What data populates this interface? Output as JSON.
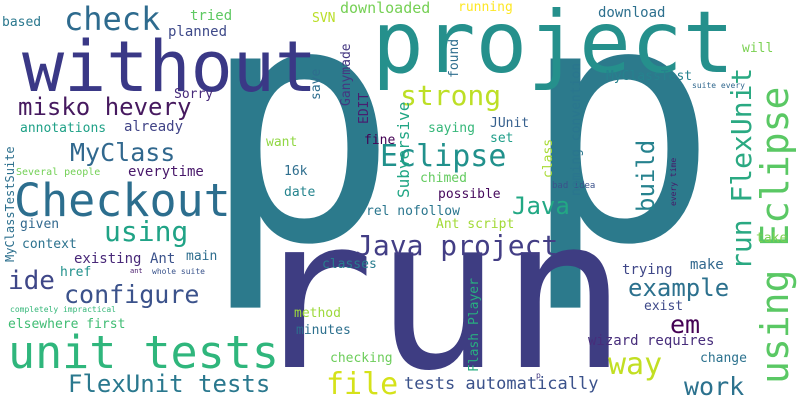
{
  "word_cloud": {
    "words": [
      {
        "text": "p",
        "color": "#2c7a8c"
      },
      {
        "text": "run",
        "color": "#3e3d82"
      },
      {
        "text": "project",
        "color": "#25908c"
      },
      {
        "text": "without",
        "color": "#3a3886"
      },
      {
        "text": "unit tests",
        "color": "#2fb67c"
      },
      {
        "text": "Checkout",
        "color": "#2c6e8e"
      },
      {
        "text": "using Eclipse",
        "color": "#5ac864"
      },
      {
        "text": "Java project",
        "color": "#433e85"
      },
      {
        "text": "run FlexUnit",
        "color": "#2aa982"
      },
      {
        "text": "check",
        "color": "#2e6b8e"
      },
      {
        "text": "misko hevery",
        "color": "#46195f"
      },
      {
        "text": "MyClass",
        "color": "#31688e"
      },
      {
        "text": "Eclipse",
        "color": "#21918c"
      },
      {
        "text": "strong",
        "color": "#bddf26"
      },
      {
        "text": "configure",
        "color": "#3b528b"
      },
      {
        "text": "FlexUnit tests",
        "color": "#2a788e"
      },
      {
        "text": "file",
        "color": "#d5e21a"
      },
      {
        "text": "using",
        "color": "#20a386"
      },
      {
        "text": "ide",
        "color": "#3f4788"
      },
      {
        "text": "example",
        "color": "#2c718e"
      },
      {
        "text": "work",
        "color": "#2c728e"
      },
      {
        "text": "way",
        "color": "#c2df23"
      },
      {
        "text": "em",
        "color": "#440154"
      },
      {
        "text": "build",
        "color": "#26828e"
      },
      {
        "text": "Java",
        "color": "#22a884"
      },
      {
        "text": "tests automatically",
        "color": "#3b528b"
      },
      {
        "text": "downloaded",
        "color": "#75d054"
      },
      {
        "text": "running",
        "color": "#fde725"
      },
      {
        "text": "download",
        "color": "#2d708e"
      },
      {
        "text": "tried",
        "color": "#5ec962"
      },
      {
        "text": "planned",
        "color": "#3e4989"
      },
      {
        "text": "SVN",
        "color": "#bade28"
      },
      {
        "text": "based",
        "color": "#2a788e"
      },
      {
        "text": "will",
        "color": "#7ad151"
      },
      {
        "text": "MyClassTest",
        "color": "#26828e"
      },
      {
        "text": "suite every",
        "color": "#31688e"
      },
      {
        "text": "Sorry",
        "color": "#472a7a"
      },
      {
        "text": "annotations",
        "color": "#1fa187"
      },
      {
        "text": "already",
        "color": "#414487"
      },
      {
        "text": "Several people",
        "color": "#73d056"
      },
      {
        "text": "everytime",
        "color": "#48186a"
      },
      {
        "text": "given",
        "color": "#31688e"
      },
      {
        "text": "context",
        "color": "#2c728e"
      },
      {
        "text": "existing",
        "color": "#482878"
      },
      {
        "text": "Ant",
        "color": "#3b528b"
      },
      {
        "text": "main",
        "color": "#2e6e8e"
      },
      {
        "text": "href",
        "color": "#21918c"
      },
      {
        "text": "ant",
        "color": "#481b6d"
      },
      {
        "text": "whole suite",
        "color": "#3a548c"
      },
      {
        "text": "completely impractical",
        "color": "#35b779"
      },
      {
        "text": "elsewhere first",
        "color": "#3fbc73"
      },
      {
        "text": "MyClassTestSuite",
        "color": "#2d708e"
      },
      {
        "text": "want",
        "color": "#90d743"
      },
      {
        "text": "16k",
        "color": "#2e6e8e"
      },
      {
        "text": "date",
        "color": "#25848e"
      },
      {
        "text": "fine",
        "color": "#440154"
      },
      {
        "text": "saying",
        "color": "#35b779"
      },
      {
        "text": "JUnit",
        "color": "#355f8d"
      },
      {
        "text": "set",
        "color": "#1f9e89"
      },
      {
        "text": "chimed",
        "color": "#63cb5f"
      },
      {
        "text": "possible",
        "color": "#460a5d"
      },
      {
        "text": "rel nofollow",
        "color": "#2a768e"
      },
      {
        "text": "Ant script",
        "color": "#a2da37"
      },
      {
        "text": "bad idea",
        "color": "#3b528b"
      },
      {
        "text": "every time",
        "color": "#481769"
      },
      {
        "text": "take",
        "color": "#7ad151"
      },
      {
        "text": "trying",
        "color": "#3f4788"
      },
      {
        "text": "make",
        "color": "#31688e"
      },
      {
        "text": "classes",
        "color": "#287c8e"
      },
      {
        "text": "method",
        "color": "#9dd93b"
      },
      {
        "text": "minutes",
        "color": "#2d708e"
      },
      {
        "text": "exist",
        "color": "#3e4989"
      },
      {
        "text": "wizard requires",
        "color": "#472d7b"
      },
      {
        "text": "change",
        "color": "#2c728e"
      },
      {
        "text": "checking",
        "color": "#6ccd5a"
      },
      {
        "text": "Flash Player",
        "color": "#28ae80"
      },
      {
        "text": "Subversive",
        "color": "#21a685"
      },
      {
        "text": "class",
        "color": "#a8db34"
      },
      {
        "text": "naming convention",
        "color": "#2a768e"
      },
      {
        "text": "found",
        "color": "#2e6e8e"
      },
      {
        "text": "EDIT",
        "color": "#481f70"
      },
      {
        "text": "Ganymade",
        "color": "#453781"
      },
      {
        "text": "save",
        "color": "#2e6e8e"
      },
      {
        "text": "p",
        "color": "#443a83"
      }
    ]
  }
}
